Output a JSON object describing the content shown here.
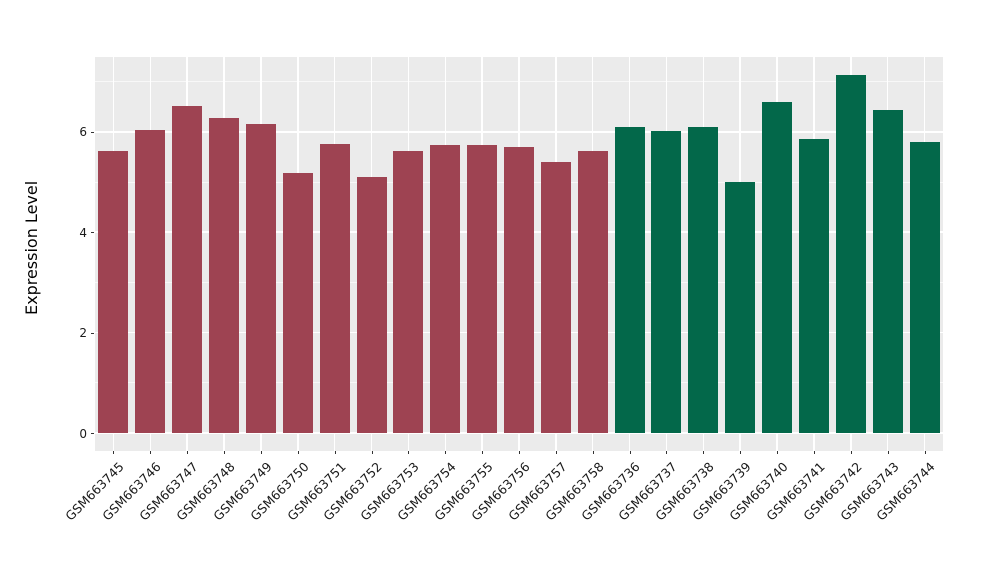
{
  "chart_data": {
    "type": "bar",
    "title": "",
    "xlabel": "",
    "ylabel": "Expression Level",
    "categories": [
      "GSM663745",
      "GSM663746",
      "GSM663747",
      "GSM663748",
      "GSM663749",
      "GSM663750",
      "GSM663751",
      "GSM663752",
      "GSM663753",
      "GSM663754",
      "GSM663755",
      "GSM663756",
      "GSM663757",
      "GSM663758",
      "GSM663736",
      "GSM663737",
      "GSM663738",
      "GSM663739",
      "GSM663740",
      "GSM663741",
      "GSM663742",
      "GSM663743",
      "GSM663744"
    ],
    "values": [
      5.62,
      6.04,
      6.51,
      6.27,
      6.16,
      5.18,
      5.76,
      5.09,
      5.61,
      5.73,
      5.73,
      5.69,
      5.4,
      5.61,
      6.09,
      6.01,
      6.09,
      5.0,
      6.6,
      5.85,
      7.14,
      6.43,
      5.79
    ],
    "bar_group_index": [
      0,
      0,
      0,
      0,
      0,
      0,
      0,
      0,
      0,
      0,
      0,
      0,
      0,
      0,
      1,
      1,
      1,
      1,
      1,
      1,
      1,
      1,
      1
    ],
    "group_colors": [
      "#9E4352",
      "#03684A"
    ],
    "ylim": [
      0,
      7.49
    ],
    "yticks": [
      0,
      2,
      4,
      6
    ],
    "ytick_labels": [
      "0",
      "2",
      "4",
      "6"
    ],
    "yminor": [
      1,
      3,
      5,
      7
    ],
    "grid": true,
    "legend_position": "none",
    "panel_background": "#EBEBEB",
    "grid_color": "#FFFFFF",
    "axis_text_color": "#1a1a1a"
  }
}
